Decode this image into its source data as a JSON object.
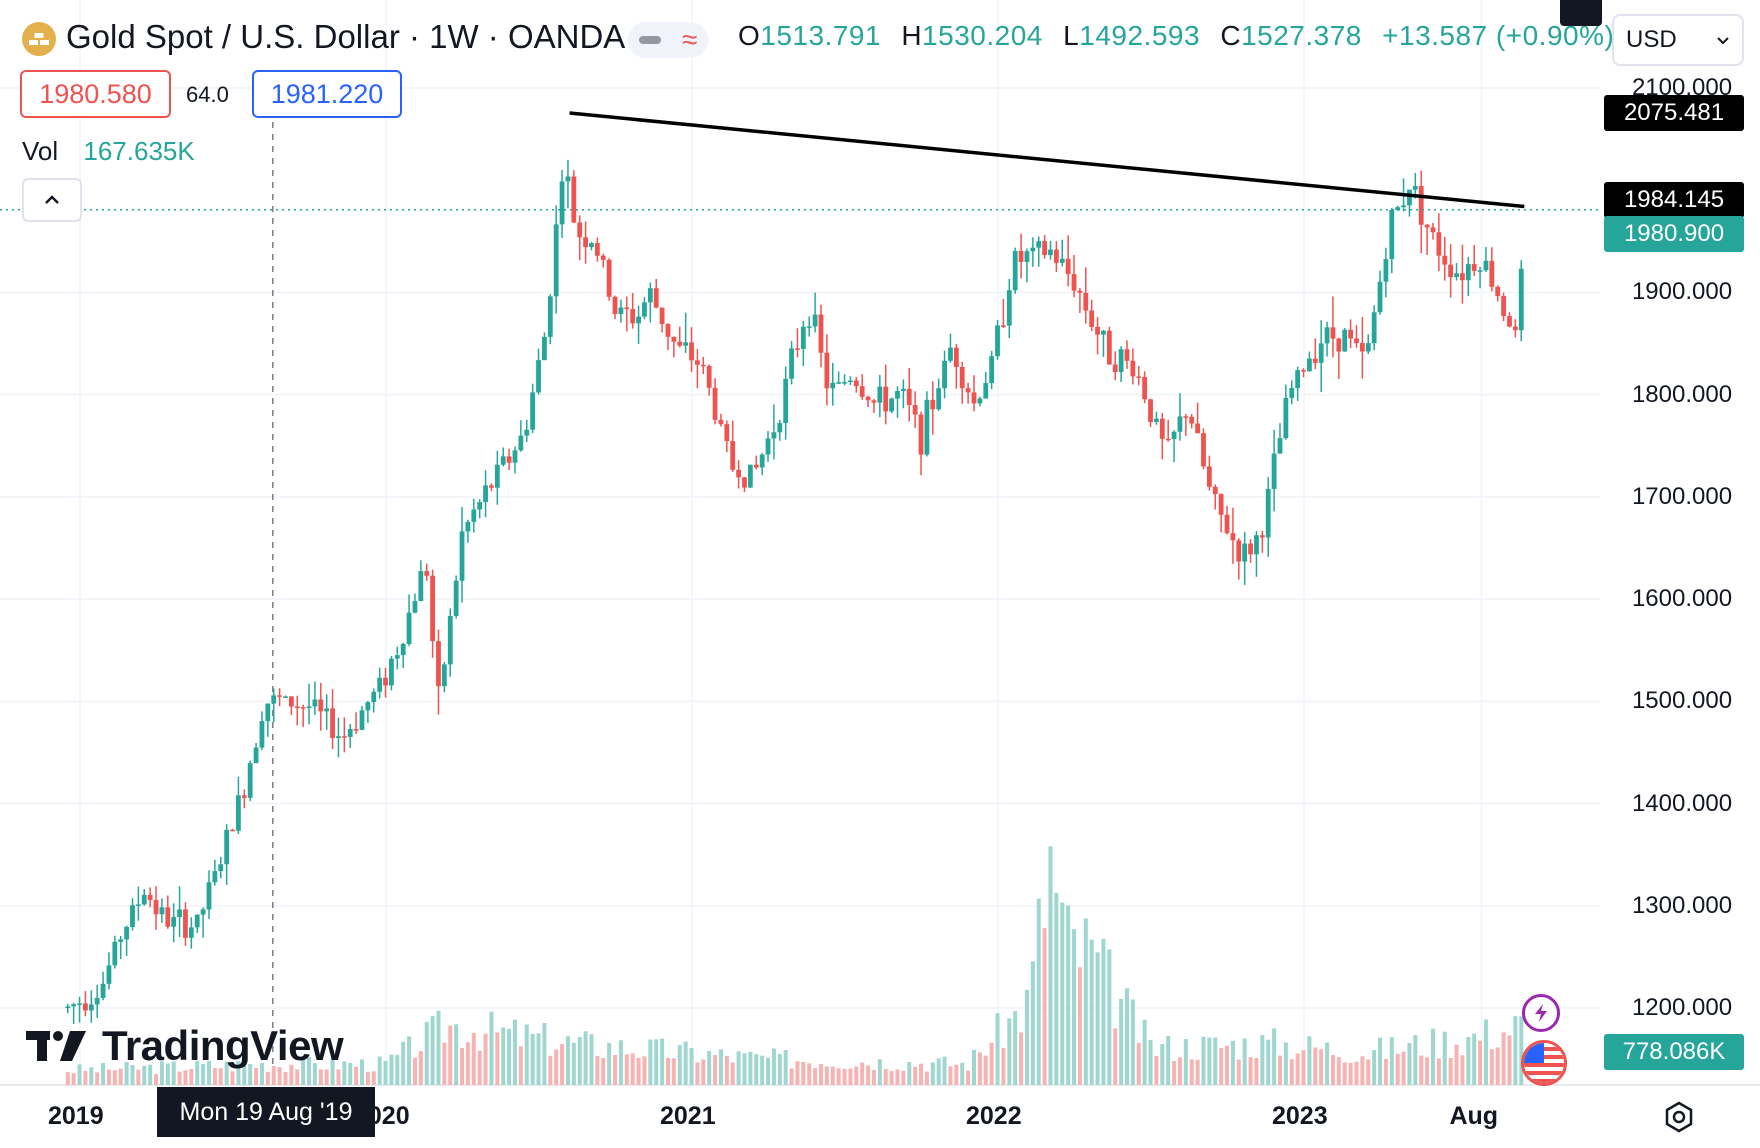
{
  "header": {
    "title": "Gold Spot / U.S. Dollar · 1W · OANDA",
    "ohlc": {
      "o_label": "O",
      "o": "1513.791",
      "h_label": "H",
      "h": "1530.204",
      "l_label": "L",
      "l": "1492.593",
      "c_label": "C",
      "c": "1527.378",
      "change": "+13.587 (+0.90%)"
    },
    "bid": "1980.580",
    "spread": "64.0",
    "ask": "1981.220",
    "vol_label": "Vol",
    "vol_value": "167.635K",
    "currency": "USD"
  },
  "axis_tags": {
    "trendline_top": "2075.481",
    "trendline_end": "1984.145",
    "last_price": "1980.900",
    "volume": "778.086K"
  },
  "crosshair_date": "Mon 19 Aug '19",
  "logo_text": "TradingView",
  "colors": {
    "up": "#26a69a",
    "down": "#ef5350",
    "up_vol": "#9fd6cf",
    "down_vol": "#f7b3b1",
    "crosshair": "#787b86",
    "trendline": "#000000"
  },
  "icons": [
    "gold-logo-icon",
    "chevron-down-icon",
    "chevron-up-icon",
    "flash-icon",
    "us-flag-icon",
    "settings-icon"
  ],
  "chart_data": {
    "type": "candlestick",
    "timeframe": "1W",
    "ylim": [
      1170,
      2110
    ],
    "y_ticks": [
      "2100.000",
      "1900.000",
      "1800.000",
      "1700.000",
      "1600.000",
      "1500.000",
      "1400.000",
      "1300.000",
      "1200.000"
    ],
    "x_ticks": [
      {
        "label": "2019",
        "t": 2019.0
      },
      {
        "label": "2020",
        "t": 2020.0
      },
      {
        "label": "2021",
        "t": 2021.0
      },
      {
        "label": "2022",
        "t": 2022.0
      },
      {
        "label": "2023",
        "t": 2023.0
      },
      {
        "label": "Aug",
        "t": 2023.58
      }
    ],
    "trendline": {
      "from": {
        "t": 2020.6,
        "price": 2075.5
      },
      "to": {
        "t": 2023.72,
        "price": 1984.1
      }
    },
    "last_price": 1980.9,
    "crosshair_t": 2019.63,
    "anchors": [
      [
        2018.96,
        1200
      ],
      [
        2019.07,
        1220
      ],
      [
        2019.13,
        1270
      ],
      [
        2019.21,
        1315
      ],
      [
        2019.28,
        1285
      ],
      [
        2019.38,
        1280
      ],
      [
        2019.46,
        1345
      ],
      [
        2019.54,
        1420
      ],
      [
        2019.6,
        1500
      ],
      [
        2019.66,
        1500
      ],
      [
        2019.75,
        1495
      ],
      [
        2019.86,
        1465
      ],
      [
        2019.98,
        1515
      ],
      [
        2020.05,
        1560
      ],
      [
        2020.13,
        1640
      ],
      [
        2020.17,
        1495
      ],
      [
        2020.25,
        1665
      ],
      [
        2020.37,
        1725
      ],
      [
        2020.45,
        1760
      ],
      [
        2020.52,
        1860
      ],
      [
        2020.58,
        2030
      ],
      [
        2020.62,
        1960
      ],
      [
        2020.68,
        1950
      ],
      [
        2020.75,
        1880
      ],
      [
        2020.82,
        1875
      ],
      [
        2020.86,
        1900
      ],
      [
        2020.95,
        1845
      ],
      [
        2021.03,
        1830
      ],
      [
        2021.13,
        1730
      ],
      [
        2021.2,
        1720
      ],
      [
        2021.28,
        1780
      ],
      [
        2021.38,
        1890
      ],
      [
        2021.45,
        1800
      ],
      [
        2021.52,
        1820
      ],
      [
        2021.6,
        1790
      ],
      [
        2021.68,
        1800
      ],
      [
        2021.75,
        1760
      ],
      [
        2021.85,
        1850
      ],
      [
        2021.92,
        1790
      ],
      [
        2021.98,
        1830
      ],
      [
        2022.05,
        1930
      ],
      [
        2022.17,
        1940
      ],
      [
        2022.25,
        1910
      ],
      [
        2022.35,
        1845
      ],
      [
        2022.45,
        1825
      ],
      [
        2022.55,
        1740
      ],
      [
        2022.62,
        1790
      ],
      [
        2022.7,
        1695
      ],
      [
        2022.8,
        1640
      ],
      [
        2022.86,
        1665
      ],
      [
        2022.95,
        1800
      ],
      [
        2023.05,
        1855
      ],
      [
        2023.13,
        1860
      ],
      [
        2023.2,
        1830
      ],
      [
        2023.28,
        1965
      ],
      [
        2023.35,
        2010
      ],
      [
        2023.42,
        1950
      ],
      [
        2023.5,
        1920
      ],
      [
        2023.58,
        1935
      ],
      [
        2023.66,
        1880
      ],
      [
        2023.7,
        1850
      ],
      [
        2023.72,
        1981
      ]
    ],
    "volume": [
      [
        2018.96,
        10
      ],
      [
        2019.6,
        14
      ],
      [
        2020.0,
        14
      ],
      [
        2020.2,
        40
      ],
      [
        2020.6,
        28
      ],
      [
        2021.2,
        18
      ],
      [
        2021.9,
        14
      ],
      [
        2022.1,
        55
      ],
      [
        2022.17,
        150
      ],
      [
        2022.22,
        95
      ],
      [
        2022.3,
        88
      ],
      [
        2022.4,
        55
      ],
      [
        2022.5,
        25
      ],
      [
        2022.9,
        28
      ],
      [
        2023.2,
        22
      ],
      [
        2023.55,
        32
      ],
      [
        2023.72,
        40
      ]
    ],
    "volume_ylim": [
      0,
      180
    ]
  }
}
